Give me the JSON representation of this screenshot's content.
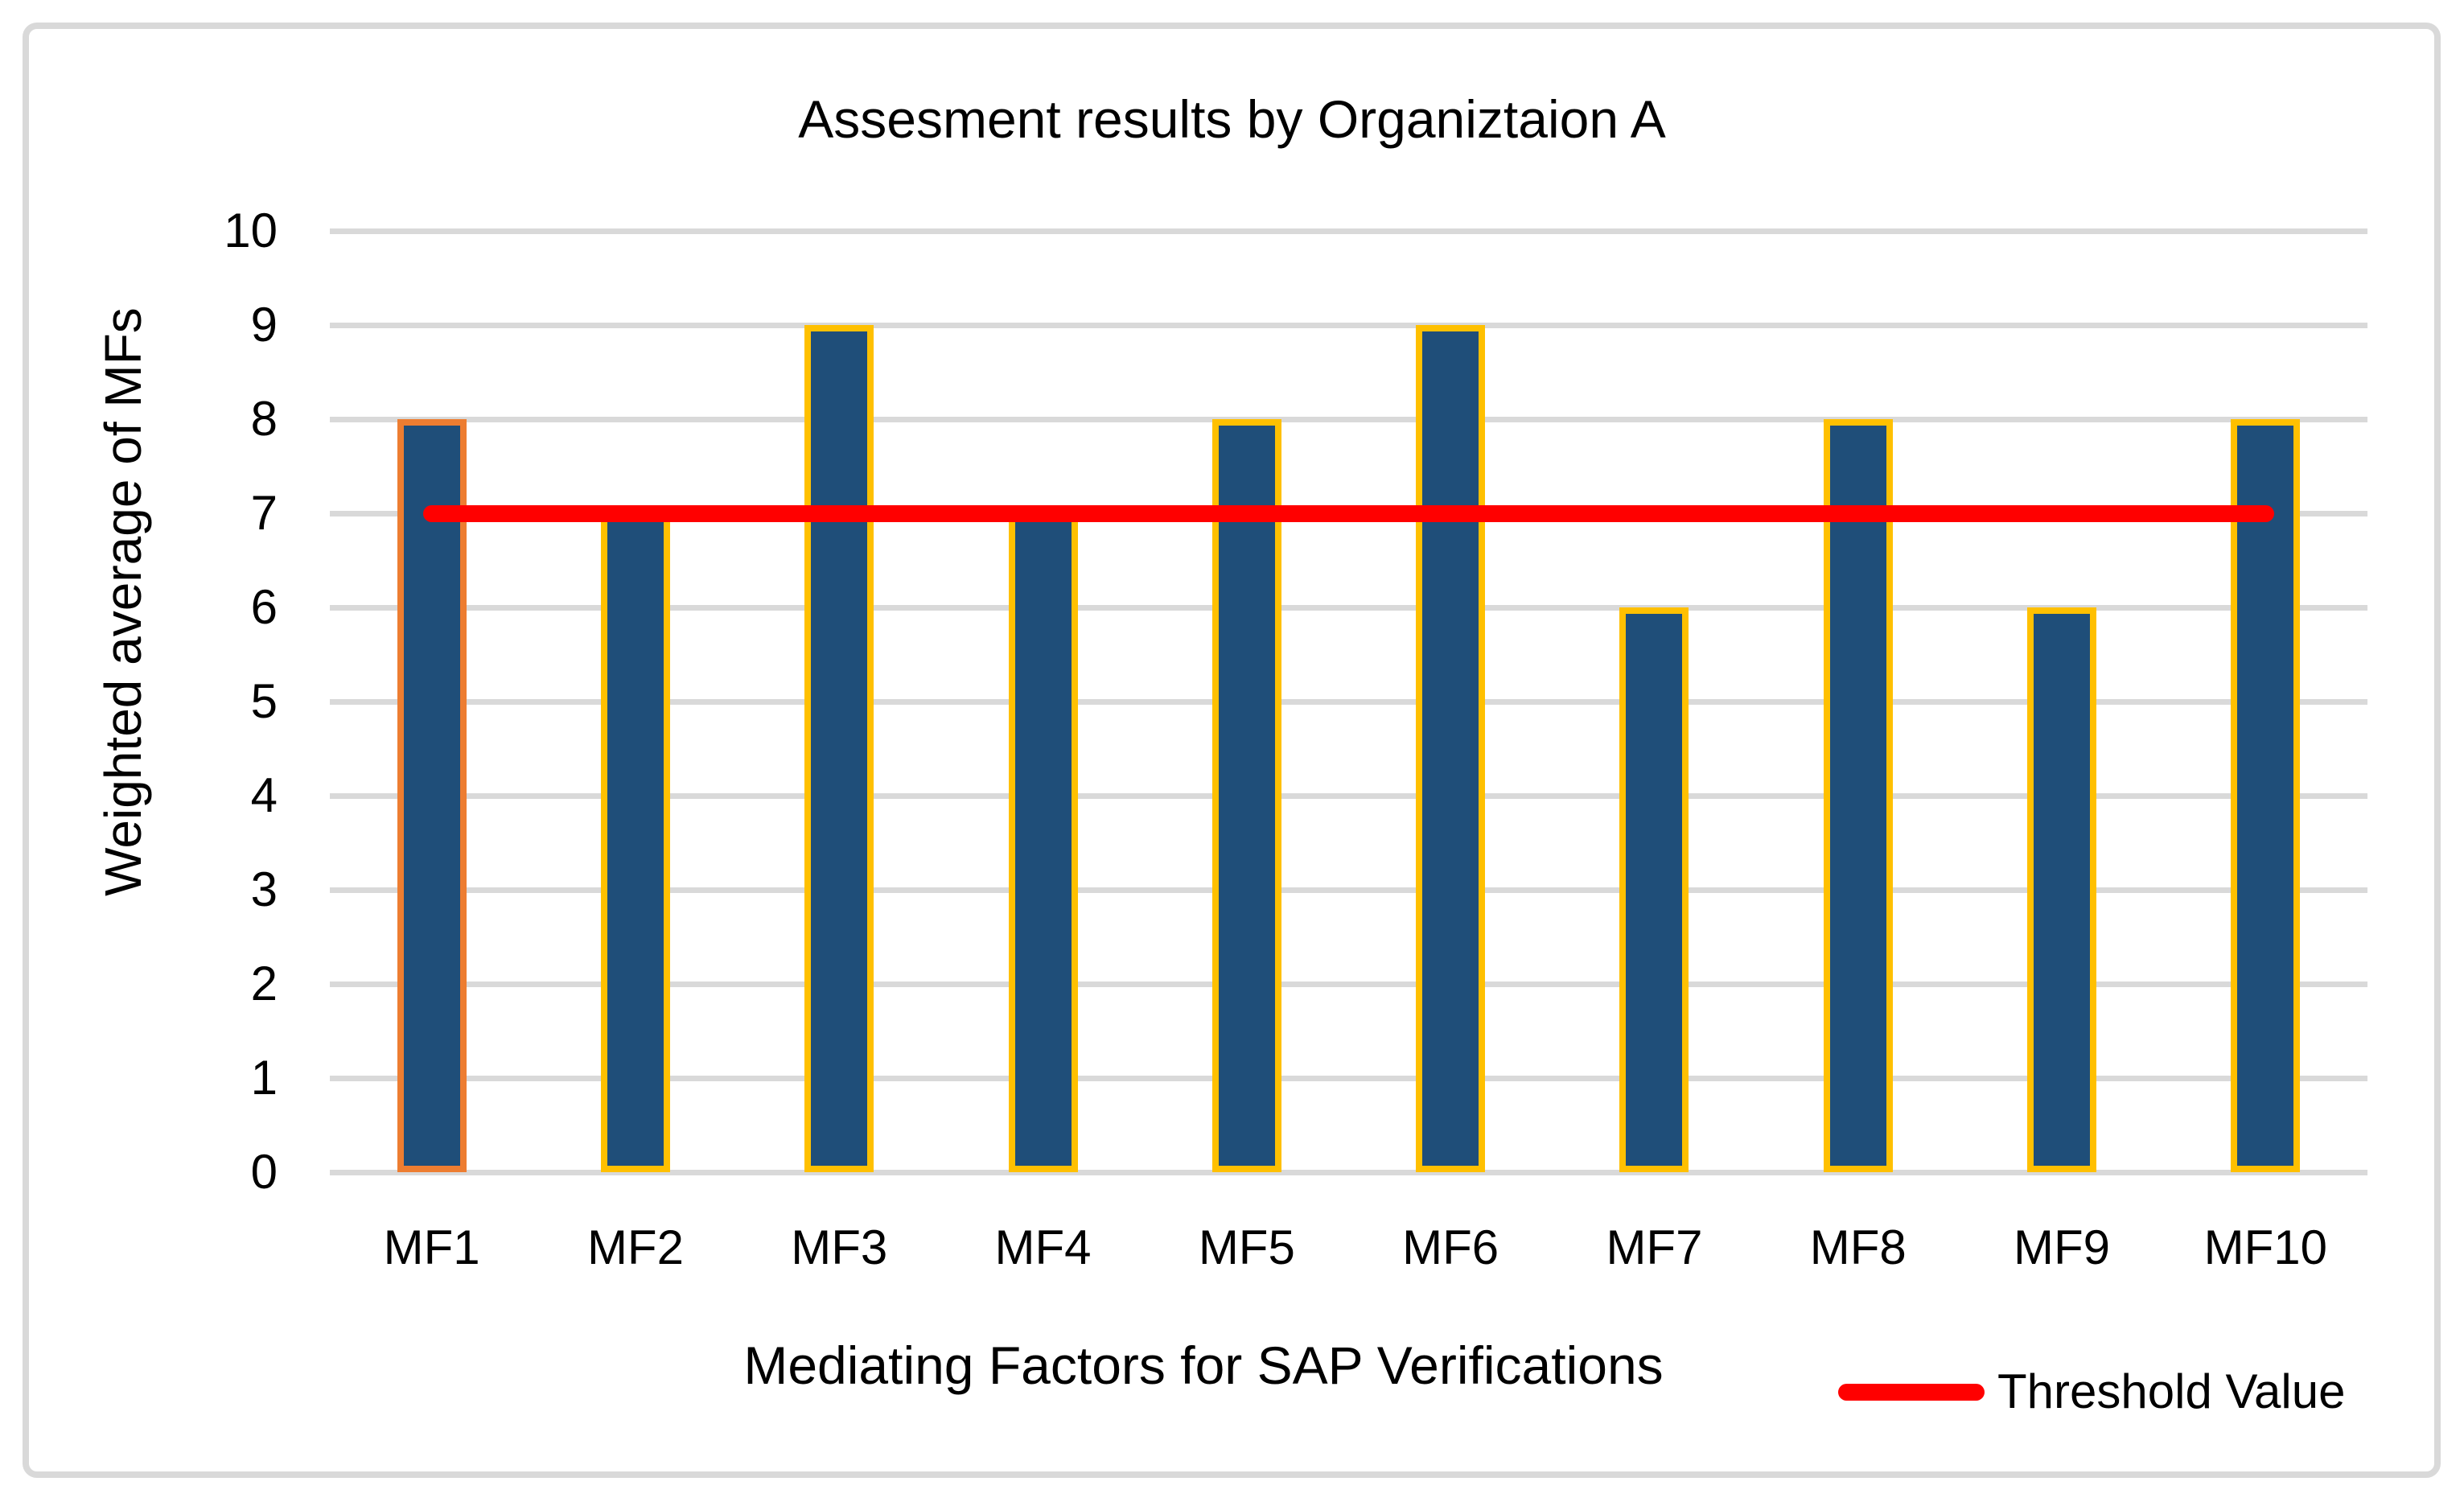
{
  "chart_data": {
    "type": "bar",
    "title": "Assesment results by Organiztaion A",
    "categories": [
      "MF1",
      "MF2",
      "MF3",
      "MF4",
      "MF5",
      "MF6",
      "MF7",
      "MF8",
      "MF9",
      "MF10"
    ],
    "values": [
      8,
      7,
      9,
      7,
      8,
      9,
      6,
      8,
      6,
      8
    ],
    "series": [
      {
        "name": "Weighted average of MFs",
        "type": "bar",
        "values": [
          8,
          7,
          9,
          7,
          8,
          9,
          6,
          8,
          6,
          8
        ]
      },
      {
        "name": "Threshold Value",
        "type": "line",
        "values": [
          7,
          7,
          7,
          7,
          7,
          7,
          7,
          7,
          7,
          7
        ]
      }
    ],
    "threshold": {
      "label": "Threshold Value",
      "value": 7
    },
    "xlabel": "Mediating Factors for SAP Verifications",
    "ylabel": "Weighted average of MFs",
    "ylim": [
      0,
      10
    ],
    "ytick_step": 1,
    "yticks": [
      0,
      1,
      2,
      3,
      4,
      5,
      6,
      7,
      8,
      9,
      10
    ],
    "grid": "horizontal",
    "legend_position": "bottom-right",
    "colors": {
      "bar_fill": "#1F4E79",
      "bar_outline": "#FFC000",
      "bar_outline_first": "#ED7D31",
      "bar_outline_colors": [
        "#ED7D31",
        "#FFC000",
        "#FFC000",
        "#FFC000",
        "#FFC000",
        "#FFC000",
        "#FFC000",
        "#FFC000",
        "#FFC000",
        "#FFC000"
      ],
      "threshold_line": "#FF0000",
      "gridline": "#D9D9D9",
      "frame_border": "#D9D9D9",
      "text": "#000000"
    }
  }
}
